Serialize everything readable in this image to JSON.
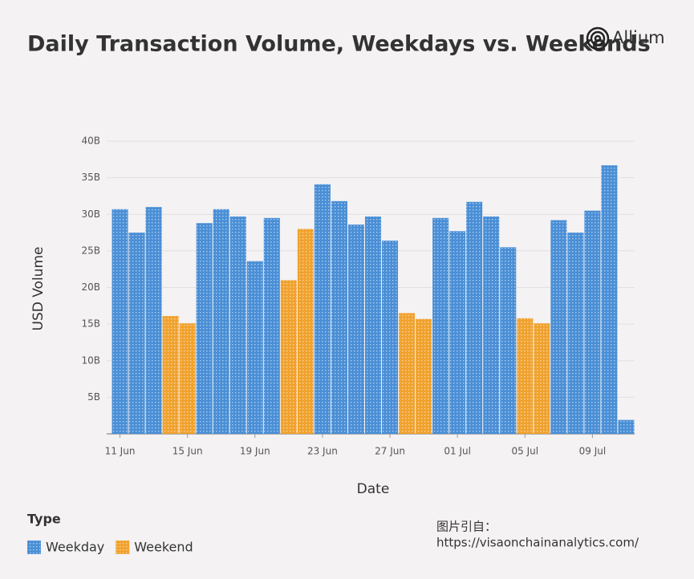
{
  "chart_data": {
    "type": "bar",
    "title": "Daily Transaction Volume, Weekdays vs. Weekends",
    "logo": "Allium",
    "x_label": "Date",
    "y_label": "USD Volume",
    "legend_title": "Type",
    "source_label": "图片引自：",
    "source_url": "https://visaonchainanalytics.com/",
    "categories": [
      "11 Jun",
      null,
      null,
      null,
      "15 Jun",
      null,
      null,
      null,
      "19 Jun",
      null,
      null,
      null,
      "23 Jun",
      null,
      null,
      null,
      "27 Jun",
      null,
      null,
      null,
      "01 Jul",
      null,
      null,
      null,
      "05 Jul",
      null,
      null,
      null,
      "09 Jul",
      null,
      null
    ],
    "series": [
      {
        "name": "Weekday",
        "color": "#4a8fd6",
        "values": [
          30.7,
          27.5,
          31.0,
          null,
          null,
          28.8,
          30.7,
          29.7,
          23.6,
          29.5,
          null,
          null,
          34.1,
          31.8,
          28.6,
          29.7,
          26.4,
          null,
          null,
          29.5,
          27.7,
          31.7,
          29.7,
          25.5,
          null,
          null,
          29.2,
          27.5,
          30.5,
          36.7,
          1.9
        ]
      },
      {
        "name": "Weekend",
        "color": "#f0a22e",
        "values": [
          null,
          null,
          null,
          16.1,
          15.1,
          null,
          null,
          null,
          null,
          null,
          21.0,
          28.0,
          null,
          null,
          null,
          null,
          null,
          16.5,
          15.7,
          null,
          null,
          null,
          null,
          null,
          15.8,
          15.1,
          null,
          null,
          null,
          null,
          null
        ]
      }
    ],
    "ylim": [
      0,
      40
    ],
    "yticks": [
      {
        "value": 5,
        "label": "5B"
      },
      {
        "value": 10,
        "label": "10B"
      },
      {
        "value": 15,
        "label": "15B"
      },
      {
        "value": 20,
        "label": "20B"
      },
      {
        "value": 25,
        "label": "25B"
      },
      {
        "value": 30,
        "label": "30B"
      },
      {
        "value": 35,
        "label": "35B"
      },
      {
        "value": 40,
        "label": "40B"
      }
    ],
    "grid": true,
    "legend": "bottom-left"
  }
}
